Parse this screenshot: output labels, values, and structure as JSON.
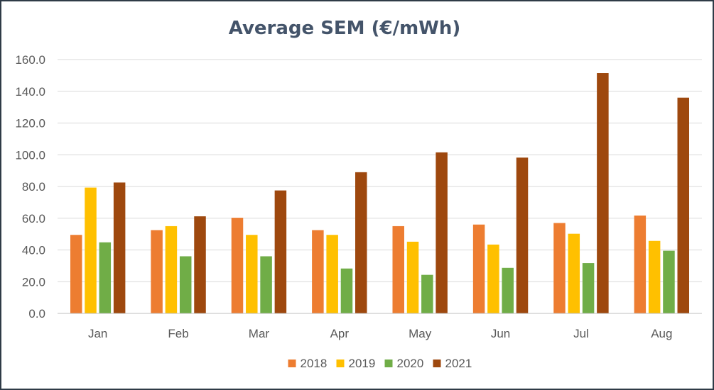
{
  "chart_data": {
    "type": "bar",
    "title": "Average SEM (€/mWh)",
    "xlabel": "",
    "ylabel": "",
    "categories": [
      "Jan",
      "Feb",
      "Mar",
      "Apr",
      "May",
      "Jun",
      "Jul",
      "Aug"
    ],
    "series": [
      {
        "name": "2018",
        "color": "#ed7d31",
        "values": [
          49.5,
          52.5,
          60.3,
          52.5,
          55.0,
          56.0,
          57.0,
          61.7
        ]
      },
      {
        "name": "2019",
        "color": "#ffc000",
        "values": [
          79.3,
          55.0,
          49.5,
          49.5,
          45.2,
          43.4,
          50.2,
          45.7
        ]
      },
      {
        "name": "2020",
        "color": "#70ad47",
        "values": [
          44.8,
          36.0,
          36.0,
          28.3,
          24.3,
          28.7,
          31.7,
          39.5
        ]
      },
      {
        "name": "2021",
        "color": "#9e480e",
        "values": [
          82.5,
          61.2,
          77.5,
          89.0,
          101.5,
          98.2,
          151.5,
          136.0
        ]
      }
    ],
    "ylim": [
      0,
      160
    ],
    "yticks": [
      "0.0",
      "20.0",
      "40.0",
      "60.0",
      "80.0",
      "100.0",
      "120.0",
      "140.0",
      "160.0"
    ],
    "ytick_values": [
      0,
      20,
      40,
      60,
      80,
      100,
      120,
      140,
      160
    ],
    "grid": true,
    "legend_position": "bottom"
  }
}
